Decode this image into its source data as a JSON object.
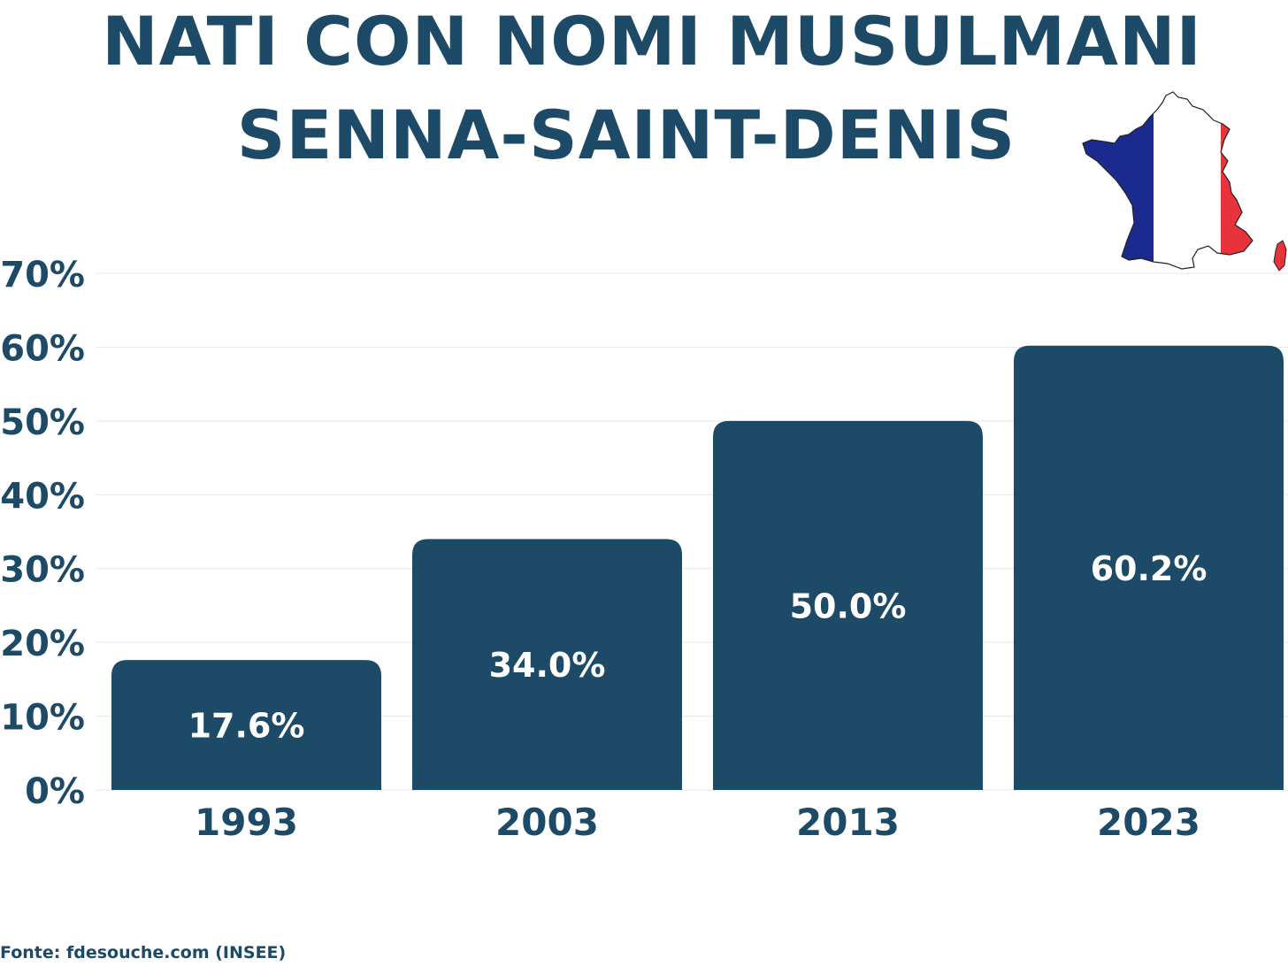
{
  "header": {
    "title": "NATI CON NOMI MUSULMANI",
    "subtitle": "SENNA-SAINT-DENIS",
    "flag_icon": "france-tricolor-map-icon"
  },
  "colors": {
    "bar": "#1d4a66",
    "text": "#1d4a66",
    "bar_label": "#ffffff",
    "grid": "#e6e6e6",
    "flag_blue": "#1a2a8f",
    "flag_white": "#ffffff",
    "flag_red": "#e8333c"
  },
  "chart_data": {
    "type": "bar",
    "categories": [
      "1993",
      "2003",
      "2013",
      "2023"
    ],
    "values": [
      17.6,
      34.0,
      50.0,
      60.2
    ],
    "value_labels": [
      "17.6%",
      "34.0%",
      "50.0%",
      "60.2%"
    ],
    "title": "NATI CON NOMI MUSULMANI",
    "subtitle": "SENNA-SAINT-DENIS",
    "xlabel": "",
    "ylabel": "",
    "ylim": [
      0,
      70
    ],
    "yticks": [
      0,
      10,
      20,
      30,
      40,
      50,
      60,
      70
    ],
    "ytick_labels": [
      "0%",
      "10%",
      "20%",
      "30%",
      "40%",
      "50%",
      "60%",
      "70%"
    ],
    "grid": true,
    "legend": false
  },
  "footer": {
    "source": "Fonte: fdesouche.com (INSEE)"
  }
}
